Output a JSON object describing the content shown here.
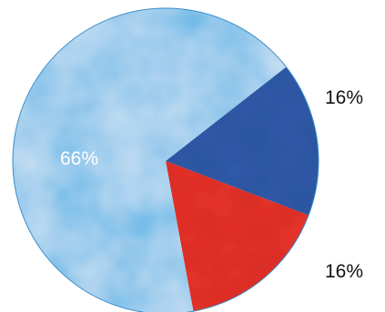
{
  "chart_data": {
    "type": "pie",
    "slices": [
      {
        "label": "66%",
        "value": 66,
        "color": "#5fb6e6"
      },
      {
        "label": "16%",
        "value": 16,
        "color": "#2f5bab"
      },
      {
        "label": "16%",
        "value": 16,
        "color": "#e8322a"
      }
    ],
    "label_colors": [
      "#ffffff",
      "#111111",
      "#111111"
    ],
    "legend": "none",
    "texture": "watercolor"
  }
}
